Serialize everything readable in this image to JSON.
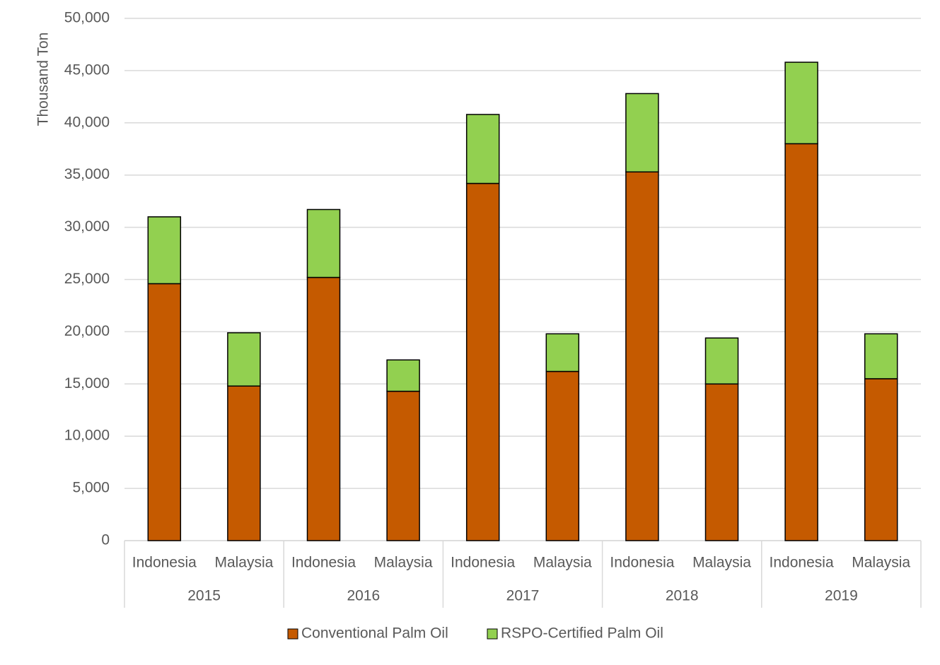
{
  "chart_data": {
    "type": "stacked_bar",
    "y_label": "Thousand Ton",
    "categories": [
      "Indonesia",
      "Malaysia",
      "Indonesia",
      "Malaysia",
      "Indonesia",
      "Malaysia",
      "Indonesia",
      "Malaysia",
      "Indonesia",
      "Malaysia"
    ],
    "groups": [
      "2015",
      "2016",
      "2017",
      "2018",
      "2019"
    ],
    "series": [
      {
        "name": "Conventional Palm Oil",
        "color": "#c55a00",
        "values": [
          24600,
          14800,
          25200,
          14300,
          34200,
          16200,
          35300,
          15000,
          38000,
          15500
        ]
      },
      {
        "name": "RSPO-Certified Palm Oil",
        "color": "#92d050",
        "values": [
          6400,
          5100,
          6500,
          3000,
          6600,
          3600,
          7500,
          4400,
          7800,
          4300
        ]
      }
    ],
    "ylim": [
      0,
      50000
    ],
    "yticks": [
      0,
      {
        "value": 5000,
        "label": "5,000"
      },
      {
        "value": 10000,
        "label": "10,000"
      },
      {
        "value": 15000,
        "label": "15,000"
      },
      {
        "value": 20000,
        "label": "20,000"
      },
      {
        "value": 25000,
        "label": "25,000"
      },
      {
        "value": 30000,
        "label": "30,000"
      },
      {
        "value": 35000,
        "label": "35,000"
      },
      {
        "value": 40000,
        "label": "40,000"
      },
      {
        "value": 45000,
        "label": "45,000"
      },
      {
        "value": 50000,
        "label": "50,000"
      }
    ],
    "grid": true,
    "legend": "bottom"
  }
}
